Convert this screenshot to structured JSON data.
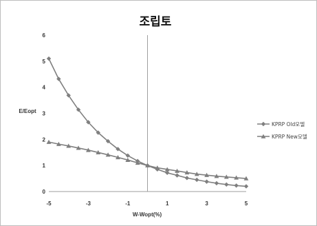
{
  "chart_data": {
    "type": "line",
    "title": "조립토",
    "xlabel": "W-Wopt(%)",
    "ylabel": "E/Eopt",
    "xlim": [
      -5,
      5
    ],
    "ylim": [
      0,
      6
    ],
    "x_ticks": [
      "-5",
      "-3",
      "-1",
      "1",
      "3",
      "5"
    ],
    "y_ticks": [
      "0",
      "1",
      "2",
      "3",
      "4",
      "5",
      "6"
    ],
    "grid": false,
    "legend_position": "right",
    "x": [
      -5,
      -4.5,
      -4,
      -3.5,
      -3,
      -2.5,
      -2,
      -1.5,
      -1,
      -0.5,
      0,
      0.5,
      1,
      1.5,
      2,
      2.5,
      3,
      3.5,
      4,
      4.5,
      5
    ],
    "series": [
      {
        "name": "KPRP Old모델",
        "marker": "diamond",
        "values": [
          5.1,
          4.32,
          3.69,
          3.14,
          2.66,
          2.26,
          1.93,
          1.63,
          1.38,
          1.17,
          1.0,
          0.85,
          0.72,
          0.62,
          0.52,
          0.45,
          0.38,
          0.32,
          0.27,
          0.23,
          0.2
        ]
      },
      {
        "name": "KPRP New모델",
        "marker": "triangle",
        "values": [
          1.9,
          1.82,
          1.75,
          1.67,
          1.59,
          1.5,
          1.41,
          1.31,
          1.21,
          1.1,
          1.0,
          0.91,
          0.85,
          0.79,
          0.73,
          0.67,
          0.63,
          0.59,
          0.56,
          0.53,
          0.5
        ]
      }
    ],
    "colors": {
      "series": "#7f7f7f",
      "axis": "#9e9e9e"
    }
  }
}
